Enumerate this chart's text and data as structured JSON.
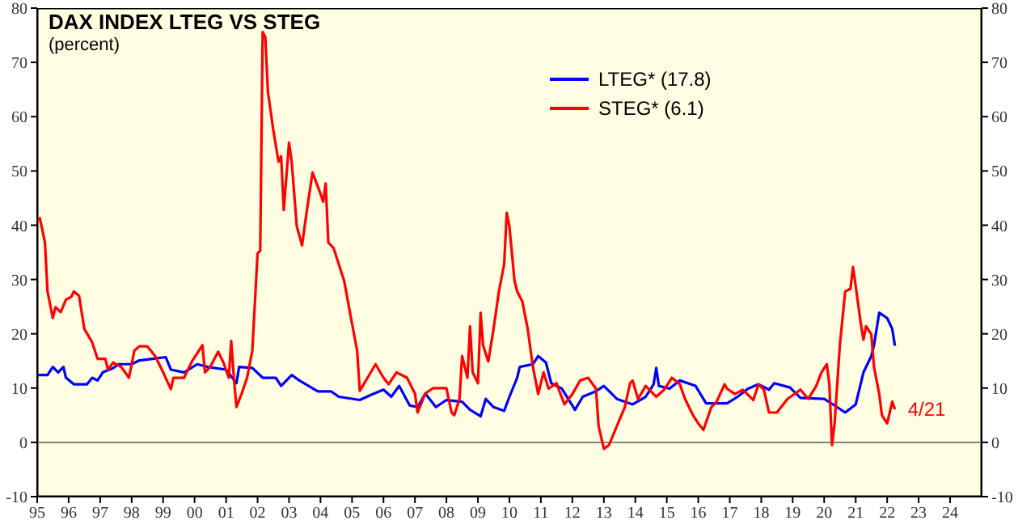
{
  "chart_data": {
    "type": "line",
    "title": "DAX INDEX LTEG VS STEG",
    "subtitle": "(percent)",
    "series": [
      {
        "name": "LTEG* (17.8)",
        "color": "#0000ff",
        "x": [
          "1995-01",
          "1995-05",
          "1995-07",
          "1995-09",
          "1995-11",
          "1995-12",
          "1996-03",
          "1996-08",
          "1996-10",
          "1996-12",
          "1997-02",
          "1997-06",
          "1997-08",
          "1998-01",
          "1998-04",
          "1998-09",
          "1999-02",
          "1999-04",
          "1999-09",
          "2000-02",
          "2000-06",
          "2001-01",
          "2001-05",
          "2001-06",
          "2001-11",
          "2002-03",
          "2002-08",
          "2002-10",
          "2003-02",
          "2003-05",
          "2003-12",
          "2004-05",
          "2004-08",
          "2005-04",
          "2005-08",
          "2006-01",
          "2006-04",
          "2006-07",
          "2006-11",
          "2007-02",
          "2007-05",
          "2007-09",
          "2008-01",
          "2008-07",
          "2008-10",
          "2009-02",
          "2009-04",
          "2009-07",
          "2009-11",
          "2010-01",
          "2010-04",
          "2010-05",
          "2010-10",
          "2010-12",
          "2011-03",
          "2011-05",
          "2011-09",
          "2012-02",
          "2012-05",
          "2012-10",
          "2013-01",
          "2013-06",
          "2013-12",
          "2014-05",
          "2014-08",
          "2014-09",
          "2014-10",
          "2015-02",
          "2015-06",
          "2015-12",
          "2016-04",
          "2016-12",
          "2017-04",
          "2017-08",
          "2017-12",
          "2018-04",
          "2018-06",
          "2018-12",
          "2019-04",
          "2020-01",
          "2020-05",
          "2020-09",
          "2021-01",
          "2021-04",
          "2021-07",
          "2021-08",
          "2021-10",
          "2022-01",
          "2022-03",
          "2022-04"
        ],
        "values": [
          12.4,
          12.4,
          13.9,
          12.9,
          13.9,
          11.9,
          10.7,
          10.7,
          11.9,
          11.4,
          12.9,
          13.7,
          14.4,
          14.4,
          15.1,
          15.4,
          15.7,
          13.4,
          12.9,
          14.4,
          13.9,
          13.4,
          10.9,
          13.9,
          13.7,
          11.9,
          11.9,
          10.4,
          12.4,
          11.4,
          9.4,
          9.4,
          8.4,
          7.8,
          8.7,
          9.7,
          8.4,
          10.4,
          6.8,
          6.5,
          9,
          6.5,
          7.8,
          7.5,
          6,
          4.8,
          8,
          6.5,
          5.8,
          8.4,
          11.9,
          13.9,
          14.4,
          15.9,
          14.7,
          10.9,
          9.9,
          6,
          8.4,
          9.4,
          10.4,
          8,
          7,
          8.4,
          10.7,
          13.7,
          10.4,
          9.9,
          11.4,
          10.4,
          7.2,
          7.2,
          8.4,
          9.9,
          10.7,
          9.7,
          10.9,
          10.1,
          8.2,
          8,
          6.8,
          5.5,
          7,
          12.9,
          15.9,
          17.9,
          23.9,
          22.9,
          20.9,
          17.8
        ]
      },
      {
        "name": "STEG* (6.1)",
        "color": "#ff0000",
        "x": [
          "1995-01",
          "1995-02",
          "1995-04",
          "1995-05",
          "1995-07",
          "1995-08",
          "1995-10",
          "1995-12",
          "1996-02",
          "1996-03",
          "1996-05",
          "1996-07",
          "1996-10",
          "1996-12",
          "1997-03",
          "1997-04",
          "1997-06",
          "1997-09",
          "1997-12",
          "1998-02",
          "1998-04",
          "1998-07",
          "1998-10",
          "1999-01",
          "1999-04",
          "1999-05",
          "1999-09",
          "1999-12",
          "2000-04",
          "2000-05",
          "2000-07",
          "2000-10",
          "2000-12",
          "2001-02",
          "2001-03",
          "2001-04",
          "2001-05",
          "2001-07",
          "2001-09",
          "2001-11",
          "2002-01",
          "2002-02",
          "2002-03",
          "2002-04",
          "2002-05",
          "2002-07",
          "2002-09",
          "2002-10",
          "2002-11",
          "2003-01",
          "2003-02",
          "2003-04",
          "2003-06",
          "2003-08",
          "2003-10",
          "2004-01",
          "2004-02",
          "2004-03",
          "2004-04",
          "2004-06",
          "2004-10",
          "2005-01",
          "2005-03",
          "2005-04",
          "2005-07",
          "2005-10",
          "2006-01",
          "2006-03",
          "2006-06",
          "2006-10",
          "2007-01",
          "2007-02",
          "2007-05",
          "2007-08",
          "2007-10",
          "2008-01",
          "2008-03",
          "2008-04",
          "2008-06",
          "2008-07",
          "2008-09",
          "2008-10",
          "2008-11",
          "2009-01",
          "2009-02",
          "2009-03",
          "2009-05",
          "2009-07",
          "2009-09",
          "2009-11",
          "2009-12",
          "2010-01",
          "2010-03",
          "2010-04",
          "2010-06",
          "2010-08",
          "2010-10",
          "2010-12",
          "2011-02",
          "2011-04",
          "2011-07",
          "2011-10",
          "2012-01",
          "2012-04",
          "2012-07",
          "2012-10",
          "2012-11",
          "2013-01",
          "2013-03",
          "2013-06",
          "2013-09",
          "2013-11",
          "2013-12",
          "2014-02",
          "2014-05",
          "2014-09",
          "2014-12",
          "2015-03",
          "2015-06",
          "2015-08",
          "2015-11",
          "2016-01",
          "2016-03",
          "2016-06",
          "2016-08",
          "2016-11",
          "2016-12",
          "2017-03",
          "2017-06",
          "2017-10",
          "2017-12",
          "2018-02",
          "2018-04",
          "2018-07",
          "2018-11",
          "2019-04",
          "2019-07",
          "2019-10",
          "2019-12",
          "2020-02",
          "2020-03",
          "2020-04",
          "2020-05",
          "2020-07",
          "2020-09",
          "2020-11",
          "2020-12",
          "2021-01",
          "2021-03",
          "2021-04",
          "2021-05",
          "2021-07",
          "2021-08",
          "2021-10",
          "2021-11",
          "2022-01",
          "2022-03",
          "2022-04"
        ],
        "values": [
          40.8,
          41.3,
          36.8,
          27.8,
          22.9,
          24.9,
          24,
          26.3,
          26.8,
          27.8,
          27,
          20.9,
          18.4,
          15.4,
          15.4,
          13.4,
          14.7,
          13.9,
          11.9,
          16.9,
          17.7,
          17.7,
          15.9,
          12.9,
          9.8,
          11.9,
          11.9,
          14.9,
          17.9,
          12.9,
          13.9,
          16.7,
          14.7,
          11.9,
          18.7,
          11.9,
          6.5,
          9,
          11.9,
          16.9,
          34.8,
          35.3,
          75.6,
          74.6,
          64.6,
          57.7,
          51.7,
          52.7,
          42.8,
          55.2,
          51.7,
          39.8,
          36.3,
          43.3,
          49.7,
          45.8,
          44.3,
          47.7,
          36.8,
          35.8,
          29.8,
          21.9,
          16.9,
          9.5,
          11.9,
          14.4,
          11.9,
          10.7,
          12.9,
          11.9,
          9,
          5.5,
          9,
          10,
          10,
          10,
          5.5,
          5,
          8,
          15.9,
          11.9,
          21.4,
          12.9,
          10.9,
          23.9,
          17.9,
          14.9,
          20.9,
          27.8,
          32.8,
          42.3,
          39.8,
          29.8,
          27.8,
          25.9,
          20.9,
          13.9,
          8.9,
          12.9,
          9.9,
          10.9,
          7,
          8.9,
          11.4,
          11.9,
          9.9,
          3,
          -1.2,
          -0.5,
          3,
          6.5,
          10.9,
          11.4,
          8,
          10.4,
          8.4,
          9.7,
          11.9,
          10.7,
          8,
          5,
          3.5,
          2.3,
          6.5,
          7.5,
          10.7,
          9.9,
          8.9,
          9.7,
          7.8,
          10.7,
          9.7,
          5.5,
          5.5,
          8,
          9.7,
          8,
          10.4,
          12.9,
          14.4,
          10.7,
          -0.5,
          3.5,
          17.9,
          27.8,
          28.3,
          32.3,
          28.8,
          21.9,
          18.9,
          21.4,
          19.9,
          13.9,
          8.9,
          5,
          3.5,
          7.5,
          6.1
        ]
      }
    ],
    "annotations": [
      {
        "text": "4/21",
        "x": "2022-04",
        "y": 6.1
      }
    ],
    "ref_lines": [
      {
        "axis": "y",
        "value": 0,
        "color": "#808080"
      }
    ],
    "xlim": [
      "1995-01",
      "2025-01"
    ],
    "xticks": [
      {
        "value": "1995",
        "label": "95"
      },
      {
        "value": "1996",
        "label": "96"
      },
      {
        "value": "1997",
        "label": "97"
      },
      {
        "value": "1998",
        "label": "98"
      },
      {
        "value": "1999",
        "label": "99"
      },
      {
        "value": "2000",
        "label": "00"
      },
      {
        "value": "2001",
        "label": "01"
      },
      {
        "value": "2002",
        "label": "02"
      },
      {
        "value": "2003",
        "label": "03"
      },
      {
        "value": "2004",
        "label": "04"
      },
      {
        "value": "2005",
        "label": "05"
      },
      {
        "value": "2006",
        "label": "06"
      },
      {
        "value": "2007",
        "label": "07"
      },
      {
        "value": "2008",
        "label": "08"
      },
      {
        "value": "2009",
        "label": "09"
      },
      {
        "value": "2010",
        "label": "10"
      },
      {
        "value": "2011",
        "label": "11"
      },
      {
        "value": "2012",
        "label": "12"
      },
      {
        "value": "2013",
        "label": "13"
      },
      {
        "value": "2014",
        "label": "14"
      },
      {
        "value": "2015",
        "label": "15"
      },
      {
        "value": "2016",
        "label": "16"
      },
      {
        "value": "2017",
        "label": "17"
      },
      {
        "value": "2018",
        "label": "18"
      },
      {
        "value": "2019",
        "label": "19"
      },
      {
        "value": "2020",
        "label": "20"
      },
      {
        "value": "2021",
        "label": "21"
      },
      {
        "value": "2022",
        "label": "22"
      },
      {
        "value": "2023",
        "label": "23"
      },
      {
        "value": "2024",
        "label": "24"
      }
    ],
    "ylim": [
      -10,
      80
    ],
    "yticks": [
      -10,
      0,
      10,
      20,
      30,
      40,
      50,
      60,
      70,
      80
    ],
    "y2lim": [
      -10,
      80
    ],
    "y2ticks": [
      -10,
      0,
      10,
      20,
      30,
      40,
      50,
      60,
      70,
      80
    ],
    "legend": "top",
    "grid": false,
    "marker": "none",
    "line_style": "solid"
  }
}
